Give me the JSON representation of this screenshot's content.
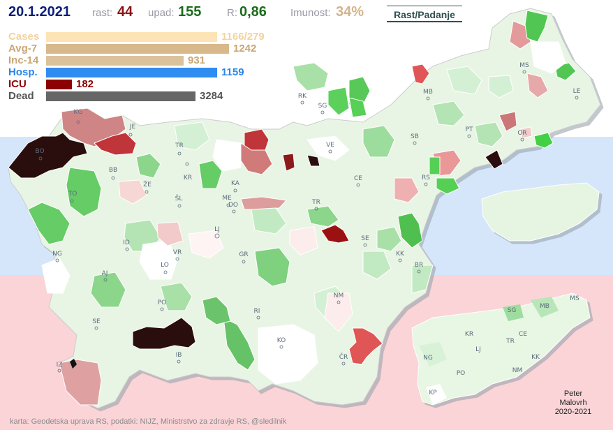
{
  "header": {
    "date": "20.1.2021",
    "rast_label": "rast:",
    "rast_value": "44",
    "upad_label": "upad:",
    "upad_value": "155",
    "r_label": "R:",
    "r_value": "0,86",
    "imunost_label": "Imunost:",
    "imunost_value": "34%",
    "toggle_label": "Rast/Padanje"
  },
  "stats": [
    {
      "label": "Cases",
      "value": "1166/279",
      "bar_fraction": 0.72,
      "color": "#fde4b6",
      "text_color": "#f2d3a0"
    },
    {
      "label": "Avg-7",
      "value": "1242",
      "bar_fraction": 0.77,
      "color": "#d8b98c",
      "text_color": "#c9a676"
    },
    {
      "label": "Inc-14",
      "value": "931",
      "bar_fraction": 0.58,
      "color": "#dcc29a",
      "text_color": "#c9a676"
    },
    {
      "label": "Hosp.",
      "value": "1159",
      "bar_fraction": 0.72,
      "color": "#2f8cf0",
      "text_color": "#2b84ea"
    },
    {
      "label": "ICU",
      "value": "182",
      "bar_fraction": 0.11,
      "color": "#8b0000",
      "text_color": "#8b0000"
    },
    {
      "label": "Dead",
      "value": "3284",
      "bar_fraction": 0.63,
      "color": "#666666",
      "text_color": "#555555"
    }
  ],
  "cities": [
    {
      "code": "KG"
    },
    {
      "code": "JE"
    },
    {
      "code": "BO"
    },
    {
      "code": "TR"
    },
    {
      "code": "BB"
    },
    {
      "code": "KR"
    },
    {
      "code": "ŽE"
    },
    {
      "code": "ŠL"
    },
    {
      "code": "TO"
    },
    {
      "code": "KA"
    },
    {
      "code": "ME"
    },
    {
      "code": "DO"
    },
    {
      "code": "LJ"
    },
    {
      "code": "ID"
    },
    {
      "code": "VR"
    },
    {
      "code": "GR"
    },
    {
      "code": "NG"
    },
    {
      "code": "AJ"
    },
    {
      "code": "LO"
    },
    {
      "code": "PO"
    },
    {
      "code": "RI"
    },
    {
      "code": "SE"
    },
    {
      "code": "NM"
    },
    {
      "code": "KO"
    },
    {
      "code": "IB"
    },
    {
      "code": "IZ"
    },
    {
      "code": "ČR"
    },
    {
      "code": "RK"
    },
    {
      "code": "SG"
    },
    {
      "code": "VE"
    },
    {
      "code": "SB"
    },
    {
      "code": "MB"
    },
    {
      "code": "PT"
    },
    {
      "code": "MS"
    },
    {
      "code": "LE"
    },
    {
      "code": "OR"
    },
    {
      "code": "CE"
    },
    {
      "code": "RS"
    },
    {
      "code": "TR"
    },
    {
      "code": "SE"
    },
    {
      "code": "KK"
    },
    {
      "code": "BR"
    }
  ],
  "mini_cities": [
    {
      "code": "SG"
    },
    {
      "code": "MB"
    },
    {
      "code": "MS"
    },
    {
      "code": "KR"
    },
    {
      "code": "TR"
    },
    {
      "code": "CE"
    },
    {
      "code": "LJ"
    },
    {
      "code": "NG"
    },
    {
      "code": "PO"
    },
    {
      "code": "NM"
    },
    {
      "code": "KK"
    },
    {
      "code": "KP"
    }
  ],
  "credits": {
    "author_line1": "Peter",
    "author_line2": "Malovrh",
    "author_line3": "2020-2021",
    "source": "karta: Geodetska uprava RS,  podatki: NIJZ, Ministrstvo za zdravje RS, @sledilnik"
  },
  "colors": {
    "band_blue": "#d5e6fb",
    "band_pink": "#fbd4d7",
    "growth_dark": "#2a0d0d",
    "growth_red": "#c0392b",
    "decline_green": "#4ad04a"
  }
}
